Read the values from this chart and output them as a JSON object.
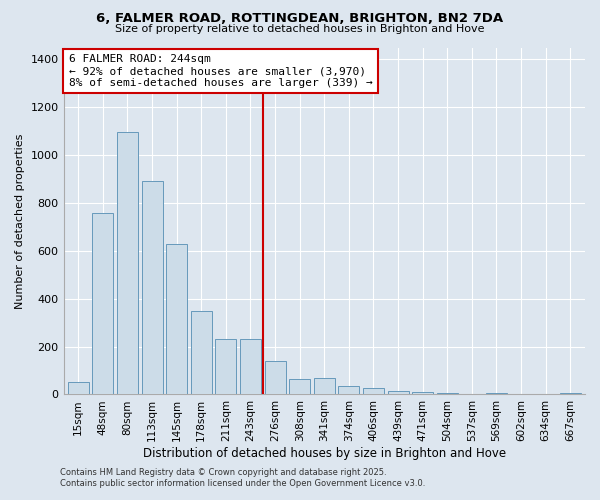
{
  "title1": "6, FALMER ROAD, ROTTINGDEAN, BRIGHTON, BN2 7DA",
  "title2": "Size of property relative to detached houses in Brighton and Hove",
  "xlabel": "Distribution of detached houses by size in Brighton and Hove",
  "ylabel": "Number of detached properties",
  "annotation_title": "6 FALMER ROAD: 244sqm",
  "annotation_line1": "← 92% of detached houses are smaller (3,970)",
  "annotation_line2": "8% of semi-detached houses are larger (339) →",
  "bar_color": "#ccdce8",
  "bar_edge_color": "#6699bb",
  "property_line_color": "#cc0000",
  "annotation_box_color": "#ffffff",
  "annotation_box_edge": "#cc0000",
  "background_color": "#dde6ef",
  "categories": [
    "15sqm",
    "48sqm",
    "80sqm",
    "113sqm",
    "145sqm",
    "178sqm",
    "211sqm",
    "243sqm",
    "276sqm",
    "308sqm",
    "341sqm",
    "374sqm",
    "406sqm",
    "439sqm",
    "471sqm",
    "504sqm",
    "537sqm",
    "569sqm",
    "602sqm",
    "634sqm",
    "667sqm"
  ],
  "values": [
    50,
    760,
    1095,
    890,
    630,
    350,
    230,
    230,
    140,
    65,
    70,
    35,
    25,
    15,
    10,
    5,
    0,
    5,
    0,
    0,
    5
  ],
  "ylim": [
    0,
    1450
  ],
  "yticks": [
    0,
    200,
    400,
    600,
    800,
    1000,
    1200,
    1400
  ],
  "property_bin_index": 7,
  "footer1": "Contains HM Land Registry data © Crown copyright and database right 2025.",
  "footer2": "Contains public sector information licensed under the Open Government Licence v3.0."
}
